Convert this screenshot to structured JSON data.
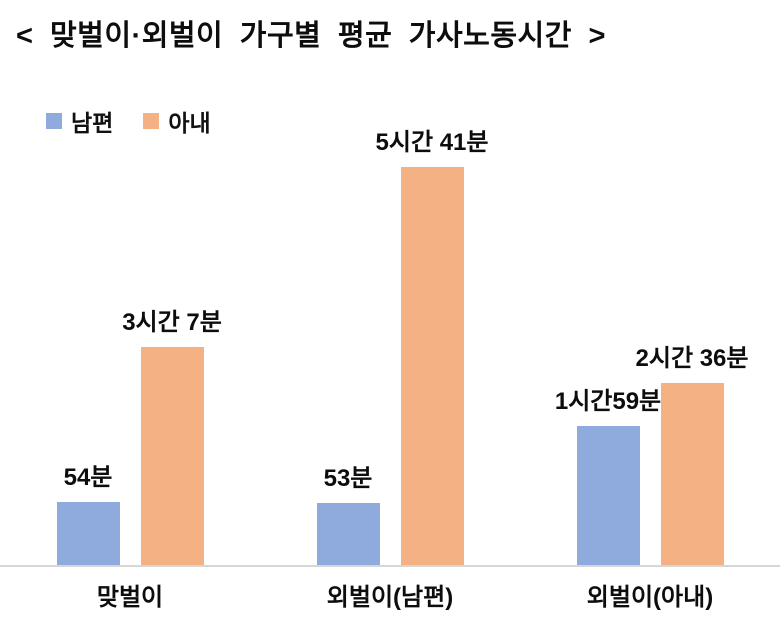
{
  "title": "< 맞벌이·외벌이 가구별 평균 가사노동시간 >",
  "chart_data": {
    "type": "bar",
    "title": "맞벌이·외벌이 가구별 평균 가사노동시간",
    "categories": [
      "맞벌이",
      "외벌이(남편)",
      "외벌이(아내)"
    ],
    "series": [
      {
        "name": "남편",
        "color": "#8FAADC",
        "unit": "minutes",
        "values": [
          54,
          53,
          119
        ],
        "labels": [
          "54분",
          "53분",
          "1시간59분"
        ]
      },
      {
        "name": "아내",
        "color": "#F4B183",
        "unit": "minutes",
        "values": [
          187,
          341,
          156
        ],
        "labels": [
          "3시간 7분",
          "5시간 41분",
          "2시간 36분"
        ]
      }
    ],
    "ylim": [
      0,
      360
    ],
    "grid": false,
    "legend_position": "top-left",
    "xlabel": "",
    "ylabel": ""
  }
}
